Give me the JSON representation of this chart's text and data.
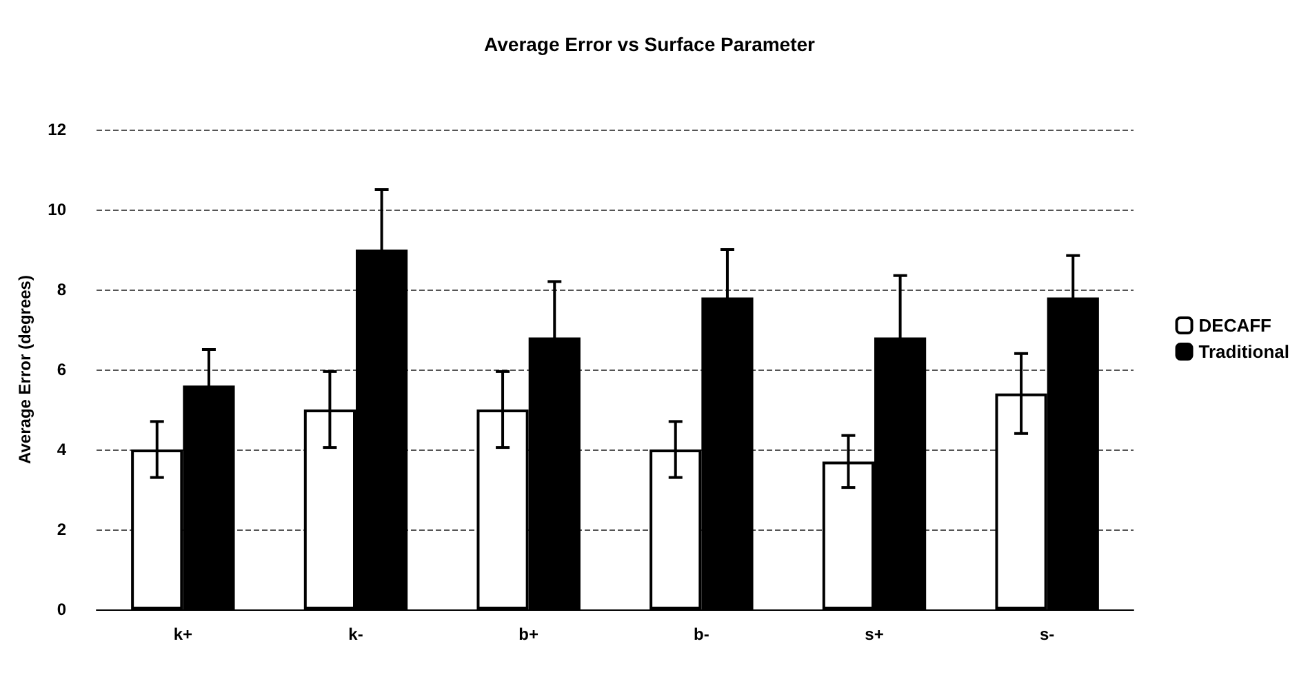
{
  "chart_data": {
    "type": "bar",
    "title": "Average Error vs Surface Parameter",
    "ylabel": "Average Error (degrees)",
    "categories": [
      "k+",
      "k-",
      "b+",
      "b-",
      "s+",
      "s-"
    ],
    "series": [
      {
        "name": "DECAFF",
        "color": "#ffffff",
        "values": [
          4.0,
          5.0,
          5.0,
          4.0,
          3.7,
          5.4
        ],
        "errors": [
          0.7,
          0.95,
          0.95,
          0.7,
          0.65,
          1.0
        ]
      },
      {
        "name": "Traditional",
        "color": "#000000",
        "values": [
          5.6,
          9.0,
          6.8,
          7.8,
          6.8,
          7.8
        ],
        "errors": [
          0.9,
          1.5,
          1.4,
          1.2,
          1.55,
          1.05
        ]
      }
    ],
    "ylim": [
      0,
      12
    ],
    "yticks": [
      0,
      2,
      4,
      6,
      8,
      10,
      12
    ],
    "grid": "y",
    "legend": "right"
  }
}
